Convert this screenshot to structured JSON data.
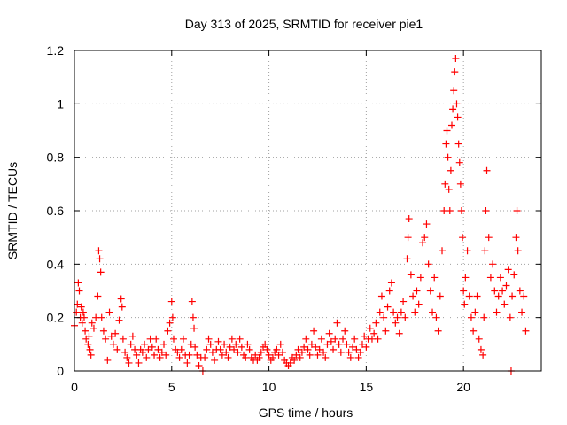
{
  "chart_data": {
    "type": "scatter",
    "title": "Day 313 of 2025, SRMTID for receiver pie1",
    "xlabel": "GPS time / hours",
    "ylabel": "SRMTID / TECUs",
    "xlim": [
      0,
      24
    ],
    "ylim": [
      0,
      1.2
    ],
    "xticks": [
      0,
      5,
      10,
      15,
      20
    ],
    "xtick_labels": [
      "0",
      "5",
      "10",
      "15",
      "20"
    ],
    "yticks": [
      0,
      0.2,
      0.4,
      0.6,
      0.8,
      1.0,
      1.2
    ],
    "ytick_labels": [
      "0",
      "0.2",
      "0.4",
      "0.6",
      "0.8",
      "1",
      "1.2"
    ],
    "grid": true,
    "marker": "+",
    "marker_color": "#ff0000",
    "series": [
      {
        "name": "SRMTID",
        "points": [
          [
            0.0,
            0.17
          ],
          [
            0.1,
            0.22
          ],
          [
            0.15,
            0.25
          ],
          [
            0.2,
            0.33
          ],
          [
            0.25,
            0.3
          ],
          [
            0.3,
            0.2
          ],
          [
            0.35,
            0.24
          ],
          [
            0.4,
            0.18
          ],
          [
            0.45,
            0.22
          ],
          [
            0.5,
            0.2
          ],
          [
            0.55,
            0.15
          ],
          [
            0.6,
            0.12
          ],
          [
            0.7,
            0.1
          ],
          [
            0.75,
            0.13
          ],
          [
            0.8,
            0.08
          ],
          [
            0.85,
            0.06
          ],
          [
            0.9,
            0.18
          ],
          [
            1.0,
            0.16
          ],
          [
            1.1,
            0.2
          ],
          [
            1.2,
            0.28
          ],
          [
            1.25,
            0.45
          ],
          [
            1.3,
            0.42
          ],
          [
            1.35,
            0.37
          ],
          [
            1.4,
            0.2
          ],
          [
            1.5,
            0.15
          ],
          [
            1.6,
            0.12
          ],
          [
            1.7,
            0.04
          ],
          [
            1.8,
            0.22
          ],
          [
            1.9,
            0.13
          ],
          [
            2.0,
            0.1
          ],
          [
            2.1,
            0.14
          ],
          [
            2.2,
            0.08
          ],
          [
            2.3,
            0.19
          ],
          [
            2.4,
            0.27
          ],
          [
            2.45,
            0.24
          ],
          [
            2.5,
            0.12
          ],
          [
            2.6,
            0.07
          ],
          [
            2.7,
            0.05
          ],
          [
            2.8,
            0.03
          ],
          [
            2.9,
            0.1
          ],
          [
            3.0,
            0.13
          ],
          [
            3.1,
            0.08
          ],
          [
            3.2,
            0.06
          ],
          [
            3.3,
            0.03
          ],
          [
            3.4,
            0.08
          ],
          [
            3.5,
            0.07
          ],
          [
            3.6,
            0.1
          ],
          [
            3.7,
            0.05
          ],
          [
            3.8,
            0.08
          ],
          [
            3.9,
            0.12
          ],
          [
            4.0,
            0.09
          ],
          [
            4.1,
            0.06
          ],
          [
            4.2,
            0.12
          ],
          [
            4.3,
            0.08
          ],
          [
            4.4,
            0.05
          ],
          [
            4.5,
            0.07
          ],
          [
            4.6,
            0.1
          ],
          [
            4.7,
            0.06
          ],
          [
            4.8,
            0.15
          ],
          [
            4.9,
            0.18
          ],
          [
            5.0,
            0.26
          ],
          [
            5.05,
            0.2
          ],
          [
            5.1,
            0.12
          ],
          [
            5.2,
            0.08
          ],
          [
            5.3,
            0.07
          ],
          [
            5.4,
            0.05
          ],
          [
            5.5,
            0.08
          ],
          [
            5.6,
            0.12
          ],
          [
            5.7,
            0.06
          ],
          [
            5.8,
            0.03
          ],
          [
            5.9,
            0.06
          ],
          [
            6.0,
            0.1
          ],
          [
            6.05,
            0.26
          ],
          [
            6.1,
            0.2
          ],
          [
            6.15,
            0.16
          ],
          [
            6.2,
            0.09
          ],
          [
            6.3,
            0.06
          ],
          [
            6.4,
            0.02
          ],
          [
            6.5,
            0.05
          ],
          [
            6.6,
            0.0
          ],
          [
            6.7,
            0.05
          ],
          [
            6.8,
            0.08
          ],
          [
            6.9,
            0.12
          ],
          [
            7.0,
            0.1
          ],
          [
            7.1,
            0.07
          ],
          [
            7.2,
            0.04
          ],
          [
            7.3,
            0.08
          ],
          [
            7.4,
            0.11
          ],
          [
            7.5,
            0.08
          ],
          [
            7.6,
            0.06
          ],
          [
            7.7,
            0.1
          ],
          [
            7.8,
            0.07
          ],
          [
            7.9,
            0.05
          ],
          [
            8.0,
            0.09
          ],
          [
            8.1,
            0.12
          ],
          [
            8.2,
            0.08
          ],
          [
            8.3,
            0.1
          ],
          [
            8.4,
            0.07
          ],
          [
            8.5,
            0.12
          ],
          [
            8.6,
            0.09
          ],
          [
            8.7,
            0.06
          ],
          [
            8.8,
            0.05
          ],
          [
            8.9,
            0.1
          ],
          [
            9.0,
            0.08
          ],
          [
            9.1,
            0.05
          ],
          [
            9.2,
            0.04
          ],
          [
            9.3,
            0.06
          ],
          [
            9.4,
            0.04
          ],
          [
            9.5,
            0.05
          ],
          [
            9.6,
            0.07
          ],
          [
            9.7,
            0.09
          ],
          [
            9.8,
            0.1
          ],
          [
            9.9,
            0.08
          ],
          [
            10.0,
            0.06
          ],
          [
            10.1,
            0.04
          ],
          [
            10.2,
            0.05
          ],
          [
            10.3,
            0.07
          ],
          [
            10.4,
            0.08
          ],
          [
            10.5,
            0.06
          ],
          [
            10.6,
            0.1
          ],
          [
            10.7,
            0.07
          ],
          [
            10.8,
            0.04
          ],
          [
            10.9,
            0.03
          ],
          [
            11.0,
            0.02
          ],
          [
            11.1,
            0.03
          ],
          [
            11.2,
            0.05
          ],
          [
            11.3,
            0.04
          ],
          [
            11.4,
            0.06
          ],
          [
            11.5,
            0.08
          ],
          [
            11.6,
            0.05
          ],
          [
            11.7,
            0.07
          ],
          [
            11.8,
            0.09
          ],
          [
            11.9,
            0.12
          ],
          [
            12.0,
            0.08
          ],
          [
            12.1,
            0.06
          ],
          [
            12.2,
            0.1
          ],
          [
            12.3,
            0.15
          ],
          [
            12.4,
            0.09
          ],
          [
            12.5,
            0.06
          ],
          [
            12.6,
            0.08
          ],
          [
            12.7,
            0.12
          ],
          [
            12.8,
            0.07
          ],
          [
            12.9,
            0.05
          ],
          [
            13.0,
            0.1
          ],
          [
            13.1,
            0.14
          ],
          [
            13.2,
            0.11
          ],
          [
            13.3,
            0.08
          ],
          [
            13.4,
            0.12
          ],
          [
            13.5,
            0.18
          ],
          [
            13.6,
            0.1
          ],
          [
            13.7,
            0.07
          ],
          [
            13.8,
            0.12
          ],
          [
            13.9,
            0.15
          ],
          [
            14.0,
            0.1
          ],
          [
            14.1,
            0.07
          ],
          [
            14.2,
            0.05
          ],
          [
            14.3,
            0.09
          ],
          [
            14.4,
            0.12
          ],
          [
            14.5,
            0.08
          ],
          [
            14.6,
            0.05
          ],
          [
            14.7,
            0.07
          ],
          [
            14.8,
            0.1
          ],
          [
            14.9,
            0.13
          ],
          [
            15.0,
            0.09
          ],
          [
            15.1,
            0.12
          ],
          [
            15.2,
            0.16
          ],
          [
            15.3,
            0.12
          ],
          [
            15.4,
            0.14
          ],
          [
            15.5,
            0.18
          ],
          [
            15.6,
            0.12
          ],
          [
            15.7,
            0.22
          ],
          [
            15.8,
            0.28
          ],
          [
            15.9,
            0.2
          ],
          [
            16.0,
            0.15
          ],
          [
            16.1,
            0.24
          ],
          [
            16.2,
            0.3
          ],
          [
            16.3,
            0.33
          ],
          [
            16.4,
            0.22
          ],
          [
            16.5,
            0.18
          ],
          [
            16.6,
            0.2
          ],
          [
            16.7,
            0.14
          ],
          [
            16.8,
            0.22
          ],
          [
            16.9,
            0.26
          ],
          [
            17.0,
            0.2
          ],
          [
            17.1,
            0.42
          ],
          [
            17.15,
            0.5
          ],
          [
            17.2,
            0.57
          ],
          [
            17.3,
            0.36
          ],
          [
            17.4,
            0.28
          ],
          [
            17.5,
            0.22
          ],
          [
            17.6,
            0.3
          ],
          [
            17.7,
            0.25
          ],
          [
            17.8,
            0.35
          ],
          [
            17.9,
            0.48
          ],
          [
            18.0,
            0.5
          ],
          [
            18.1,
            0.55
          ],
          [
            18.2,
            0.4
          ],
          [
            18.3,
            0.3
          ],
          [
            18.4,
            0.22
          ],
          [
            18.5,
            0.35
          ],
          [
            18.6,
            0.2
          ],
          [
            18.7,
            0.15
          ],
          [
            18.8,
            0.28
          ],
          [
            18.9,
            0.45
          ],
          [
            19.0,
            0.6
          ],
          [
            19.05,
            0.7
          ],
          [
            19.1,
            0.85
          ],
          [
            19.15,
            0.9
          ],
          [
            19.2,
            0.8
          ],
          [
            19.25,
            0.68
          ],
          [
            19.3,
            0.6
          ],
          [
            19.35,
            0.75
          ],
          [
            19.4,
            0.92
          ],
          [
            19.45,
            0.98
          ],
          [
            19.5,
            1.05
          ],
          [
            19.55,
            1.12
          ],
          [
            19.6,
            1.17
          ],
          [
            19.65,
            1.0
          ],
          [
            19.7,
            0.95
          ],
          [
            19.75,
            0.85
          ],
          [
            19.8,
            0.78
          ],
          [
            19.85,
            0.7
          ],
          [
            19.9,
            0.6
          ],
          [
            19.95,
            0.5
          ],
          [
            20.0,
            0.3
          ],
          [
            20.05,
            0.25
          ],
          [
            20.1,
            0.35
          ],
          [
            20.2,
            0.45
          ],
          [
            20.3,
            0.28
          ],
          [
            20.4,
            0.2
          ],
          [
            20.5,
            0.15
          ],
          [
            20.6,
            0.22
          ],
          [
            20.7,
            0.28
          ],
          [
            20.8,
            0.12
          ],
          [
            20.9,
            0.08
          ],
          [
            21.0,
            0.06
          ],
          [
            21.05,
            0.2
          ],
          [
            21.1,
            0.45
          ],
          [
            21.15,
            0.6
          ],
          [
            21.2,
            0.75
          ],
          [
            21.3,
            0.5
          ],
          [
            21.4,
            0.35
          ],
          [
            21.5,
            0.4
          ],
          [
            21.6,
            0.3
          ],
          [
            21.7,
            0.22
          ],
          [
            21.8,
            0.28
          ],
          [
            21.9,
            0.35
          ],
          [
            22.0,
            0.3
          ],
          [
            22.1,
            0.25
          ],
          [
            22.2,
            0.32
          ],
          [
            22.3,
            0.38
          ],
          [
            22.4,
            0.2
          ],
          [
            22.45,
            0.0
          ],
          [
            22.5,
            0.28
          ],
          [
            22.6,
            0.36
          ],
          [
            22.7,
            0.5
          ],
          [
            22.75,
            0.6
          ],
          [
            22.8,
            0.45
          ],
          [
            22.9,
            0.3
          ],
          [
            23.0,
            0.22
          ],
          [
            23.1,
            0.28
          ],
          [
            23.2,
            0.15
          ]
        ]
      }
    ]
  }
}
